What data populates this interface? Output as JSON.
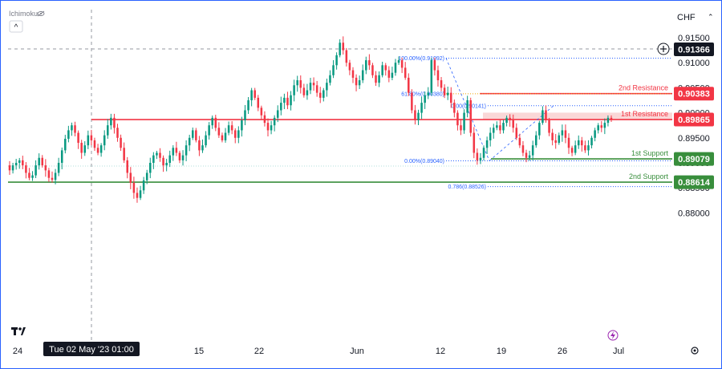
{
  "header": {
    "indicator": "Ichimoku",
    "currency": "CHF",
    "collapse_glyph": "^",
    "eye_icon": "eye-icon",
    "add_icon": "plus-circle-icon",
    "tv_logo": "tv-logo",
    "replay_icon": "lightning-icon",
    "settings_icon": "gear-icon"
  },
  "chart_data": {
    "type": "candlestick",
    "y_axis": {
      "min": 0.878,
      "max": 0.9175,
      "ticks": [
        "0.91500",
        "0.91000",
        "0.90500",
        "0.90000",
        "0.89500",
        "0.89000",
        "0.88500",
        "0.88000"
      ],
      "tick_values": [
        0.915,
        0.91,
        0.905,
        0.9,
        0.895,
        0.89,
        0.885,
        0.88
      ]
    },
    "x_axis": {
      "ticks": [
        "24",
        "15",
        "22",
        "Jun",
        "12",
        "19",
        "26",
        "Jul"
      ],
      "crosshair_label": "Tue 02 May '23   01:00"
    },
    "current_price": {
      "label": "0.91366",
      "value": 0.91366
    },
    "levels": [
      {
        "name": "2nd Resistance",
        "value_label": "0.90383",
        "value": 0.90383,
        "color": "#f23645"
      },
      {
        "name": "1st Resistance",
        "value_label": "0.89865",
        "value": 0.89865,
        "color": "#f23645"
      },
      {
        "name": "1st Support",
        "value_label": "0.89079",
        "value": 0.89079,
        "color": "#388e3c"
      },
      {
        "name": "2nd Support",
        "value_label": "0.88614",
        "value": 0.88614,
        "color": "#388e3c"
      }
    ],
    "resistance_zone": [
      0.89865,
      0.90003
    ],
    "fibonacci": [
      {
        "label": "100.00%(0.91092)",
        "value": 0.91092
      },
      {
        "label": "61.80%(0.90380)",
        "value": 0.9038
      },
      {
        "label": "0.00%(0.89040)",
        "value": 0.8904
      },
      {
        "label": "0.786(0.88526)",
        "value": 0.88526
      },
      {
        "label": "0.00(0.90141)",
        "value": 0.90141
      }
    ],
    "closes": [
      0.8885,
      0.8895,
      0.89,
      0.8905,
      0.8895,
      0.888,
      0.887,
      0.8875,
      0.8895,
      0.891,
      0.8895,
      0.8885,
      0.887,
      0.8866,
      0.888,
      0.89,
      0.8925,
      0.8948,
      0.8965,
      0.8975,
      0.896,
      0.894,
      0.892,
      0.8935,
      0.8955,
      0.8945,
      0.893,
      0.892,
      0.8935,
      0.8955,
      0.8975,
      0.899,
      0.897,
      0.895,
      0.893,
      0.8905,
      0.888,
      0.886,
      0.884,
      0.883,
      0.8845,
      0.8865,
      0.888,
      0.89,
      0.8915,
      0.892,
      0.891,
      0.8895,
      0.89,
      0.8915,
      0.893,
      0.892,
      0.8905,
      0.8915,
      0.8935,
      0.895,
      0.8965,
      0.8945,
      0.8925,
      0.8935,
      0.8955,
      0.8975,
      0.899,
      0.897,
      0.8955,
      0.8945,
      0.896,
      0.8975,
      0.8965,
      0.895,
      0.8965,
      0.8985,
      0.9005,
      0.9025,
      0.9045,
      0.903,
      0.901,
      0.8995,
      0.898,
      0.8965,
      0.8975,
      0.899,
      0.9005,
      0.902,
      0.903,
      0.9015,
      0.9035,
      0.9055,
      0.9065,
      0.905,
      0.9035,
      0.9045,
      0.906,
      0.9055,
      0.904,
      0.903,
      0.9045,
      0.906,
      0.9075,
      0.9095,
      0.9115,
      0.914,
      0.9125,
      0.91,
      0.9085,
      0.907,
      0.9055,
      0.9065,
      0.9085,
      0.9105,
      0.9095,
      0.9075,
      0.906,
      0.9075,
      0.9095,
      0.9085,
      0.907,
      0.908,
      0.91,
      0.9105,
      0.909,
      0.907,
      0.904,
      0.9005,
      0.8985,
      0.9,
      0.902,
      0.9035,
      0.904,
      0.9105,
      0.9085,
      0.9065,
      0.905,
      0.9035,
      0.904,
      0.902,
      0.9,
      0.8975,
      0.8965,
      0.9,
      0.9025,
      0.896,
      0.892,
      0.8905,
      0.891,
      0.893,
      0.8945,
      0.896,
      0.897,
      0.8975,
      0.8965,
      0.898,
      0.899,
      0.8985,
      0.897,
      0.895,
      0.8935,
      0.892,
      0.891,
      0.8915,
      0.8935,
      0.8955,
      0.898,
      0.9005,
      0.8985,
      0.896,
      0.8945,
      0.894,
      0.8955,
      0.8965,
      0.895,
      0.893,
      0.892,
      0.8935,
      0.8945,
      0.8935,
      0.8925,
      0.8935,
      0.895,
      0.8965,
      0.8975,
      0.897,
      0.898,
      0.899,
      0.8987
    ]
  }
}
